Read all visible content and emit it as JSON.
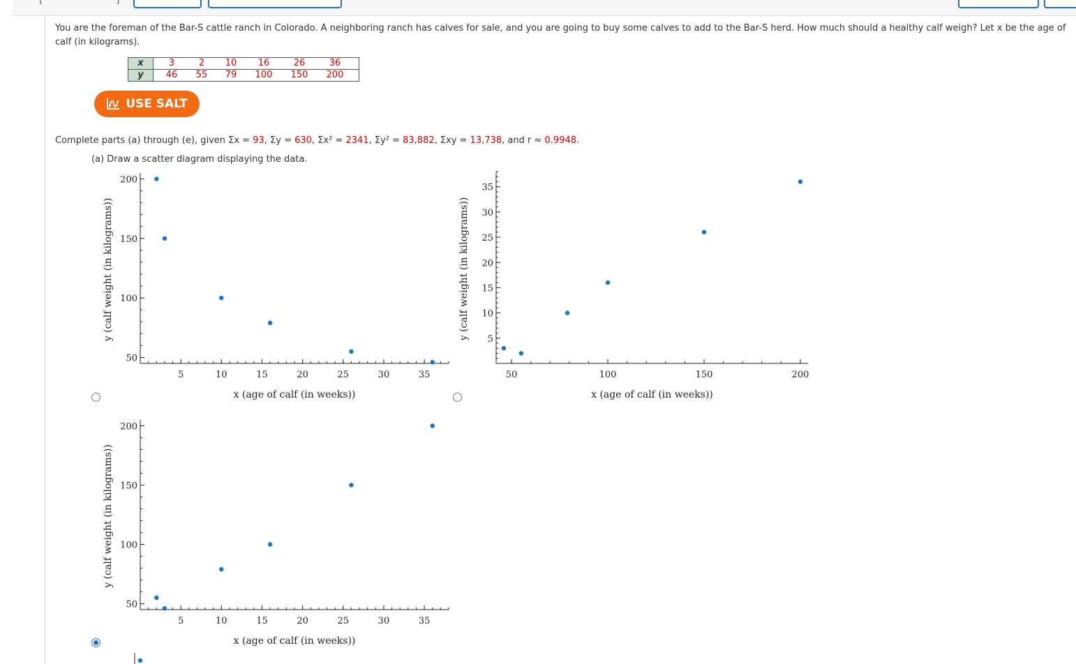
{
  "question": {
    "line1": "You are the foreman of the Bar-S cattle ranch in Colorado. A neighboring ranch has calves for sale, and you are going to buy some calves to add to the Bar-S herd. How much should a healthy calf weigh? Let x be the age of",
    "line2": "calf (in kilograms)."
  },
  "table": {
    "x_label": "x",
    "y_label": "y",
    "x_values": [
      "3",
      "2",
      "10",
      "16",
      "26",
      "36"
    ],
    "y_values": [
      "46",
      "55",
      "79",
      "100",
      "150",
      "200"
    ],
    "value_color": "#cc0000",
    "header_color": "#c9e0cf"
  },
  "salt_button": {
    "label": "USE SALT",
    "icon": "salt-graph-icon",
    "color": "#f26a12"
  },
  "given": {
    "intro": "Complete parts (a) through (e), given ",
    "sum_x_label": "Σx = ",
    "sum_x": "93",
    "sum_y_label": ", Σy = ",
    "sum_y": "630",
    "sum_x2_label": ", Σx² = ",
    "sum_x2": "2341",
    "sum_y2_label": ", Σy² = ",
    "sum_y2": "83,882",
    "sum_xy_label": ", Σxy = ",
    "sum_xy": "13,738",
    "r_label": ", and r ≈ ",
    "r": "0.9948",
    "end": "."
  },
  "part_a": {
    "label": "(a) Draw a scatter diagram displaying the data."
  },
  "options": [
    {
      "selected": false
    },
    {
      "selected": false
    },
    {
      "selected": true
    },
    {
      "selected": false
    }
  ],
  "chart_data": [
    {
      "type": "scatter",
      "xlabel": "x (age of calf (in weeks))",
      "ylabel": "y (calf weight (in kilograms))",
      "xlim": [
        0,
        38
      ],
      "ylim": [
        45,
        205
      ],
      "x_ticks": [
        5,
        10,
        15,
        20,
        25,
        30,
        35
      ],
      "y_ticks": [
        50,
        100,
        150,
        200
      ],
      "points": [
        [
          2,
          200
        ],
        [
          3,
          150
        ],
        [
          10,
          100
        ],
        [
          16,
          79
        ],
        [
          26,
          55
        ],
        [
          36,
          46
        ]
      ]
    },
    {
      "type": "scatter",
      "xlabel": "x (age of calf (in weeks))",
      "ylabel": "y (calf weight (in kilograms))",
      "xlim": [
        42,
        204
      ],
      "ylim": [
        0,
        38
      ],
      "x_ticks": [
        50,
        100,
        150,
        200
      ],
      "y_ticks": [
        5,
        10,
        15,
        20,
        25,
        30,
        35
      ],
      "points": [
        [
          46,
          3
        ],
        [
          55,
          2
        ],
        [
          79,
          10
        ],
        [
          100,
          16
        ],
        [
          150,
          26
        ],
        [
          200,
          36
        ]
      ]
    },
    {
      "type": "scatter",
      "xlabel": "x (age of calf (in weeks))",
      "ylabel": "y (calf weight (in kilograms))",
      "xlim": [
        0,
        38
      ],
      "ylim": [
        45,
        205
      ],
      "x_ticks": [
        5,
        10,
        15,
        20,
        25,
        30,
        35
      ],
      "y_ticks": [
        50,
        100,
        150,
        200
      ],
      "points": [
        [
          2,
          55
        ],
        [
          3,
          46
        ],
        [
          10,
          79
        ],
        [
          16,
          100
        ],
        [
          26,
          150
        ],
        [
          36,
          200
        ]
      ]
    }
  ],
  "colors": {
    "point": "#1a73c4",
    "axis": "#222222"
  }
}
